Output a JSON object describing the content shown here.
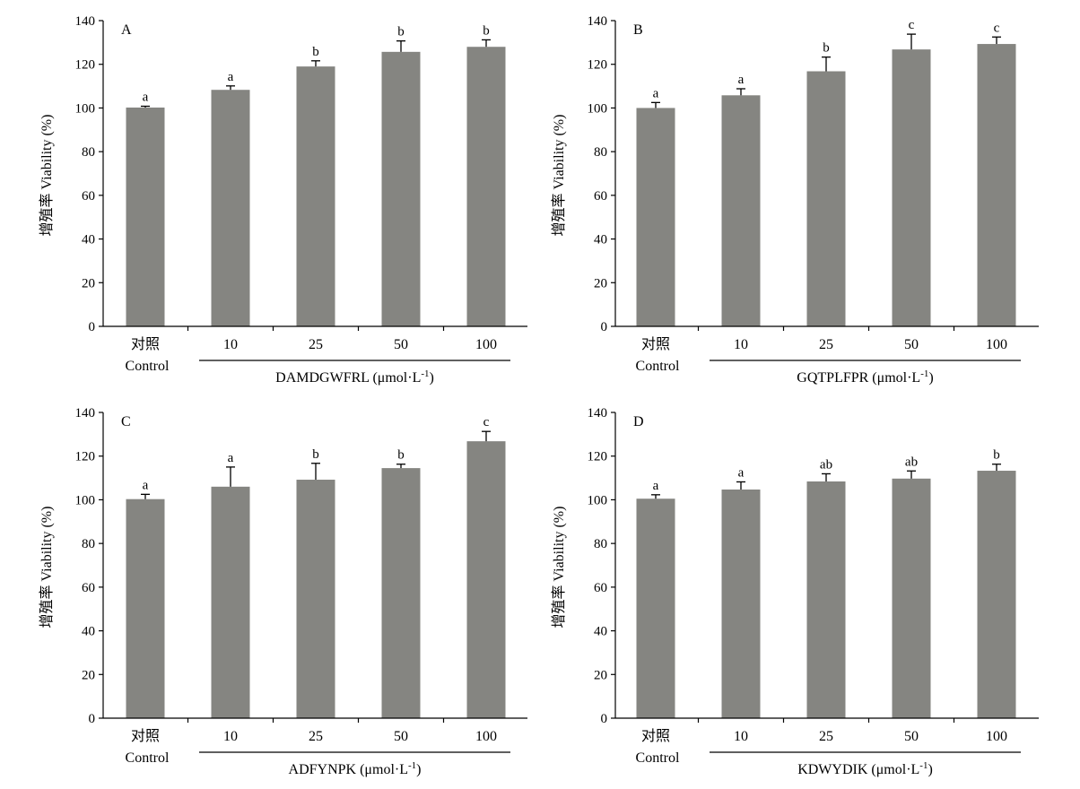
{
  "chart_data": [
    {
      "type": "bar",
      "panel_label": "A",
      "categories": [
        "对照",
        "10",
        "25",
        "50",
        "100"
      ],
      "control_sublabel": "Control",
      "group_label": "DAMDGWFRL (μmol·L",
      "group_unit_exp": "-1",
      "group_label_end": ")",
      "ylabel": "增殖率 Viability (%)",
      "ylim": [
        0,
        140
      ],
      "yticks": [
        0,
        20,
        40,
        60,
        80,
        100,
        120,
        140
      ],
      "values": [
        100.2,
        108.3,
        119.0,
        125.7,
        128.0
      ],
      "errors": [
        0.6,
        1.8,
        2.6,
        5.0,
        3.2
      ],
      "letters": [
        "a",
        "a",
        "b",
        "b",
        "b"
      ],
      "bar_color": "#858581"
    },
    {
      "type": "bar",
      "panel_label": "B",
      "categories": [
        "对照",
        "10",
        "25",
        "50",
        "100"
      ],
      "control_sublabel": "Control",
      "group_label": "GQTPLFPR (μmol·L",
      "group_unit_exp": "-1",
      "group_label_end": ")",
      "ylabel": "增殖率 Viability (%)",
      "ylim": [
        0,
        140
      ],
      "yticks": [
        0,
        20,
        40,
        60,
        80,
        100,
        120,
        140
      ],
      "values": [
        100.0,
        105.8,
        116.8,
        126.8,
        129.3
      ],
      "errors": [
        2.5,
        3.0,
        6.5,
        7.0,
        3.2
      ],
      "letters": [
        "a",
        "a",
        "b",
        "c",
        "c"
      ],
      "bar_color": "#858581"
    },
    {
      "type": "bar",
      "panel_label": "C",
      "categories": [
        "对照",
        "10",
        "25",
        "50",
        "100"
      ],
      "control_sublabel": "Control",
      "group_label": "ADFYNPK (μmol·L",
      "group_unit_exp": "-1",
      "group_label_end": ")",
      "ylabel": "增殖率 Viability (%)",
      "ylim": [
        0,
        140
      ],
      "yticks": [
        0,
        20,
        40,
        60,
        80,
        100,
        120,
        140
      ],
      "values": [
        100.3,
        106.0,
        109.2,
        114.5,
        126.8
      ],
      "errors": [
        2.2,
        9.0,
        7.5,
        1.8,
        4.5
      ],
      "letters": [
        "a",
        "a",
        "b",
        "b",
        "c"
      ],
      "bar_color": "#858581"
    },
    {
      "type": "bar",
      "panel_label": "D",
      "categories": [
        "对照",
        "10",
        "25",
        "50",
        "100"
      ],
      "control_sublabel": "Control",
      "group_label": "KDWYDIK (μmol·L",
      "group_unit_exp": "-1",
      "group_label_end": ")",
      "ylabel": "增殖率 Viability (%)",
      "ylim": [
        0,
        140
      ],
      "yticks": [
        0,
        20,
        40,
        60,
        80,
        100,
        120,
        140
      ],
      "values": [
        100.5,
        104.7,
        108.4,
        109.7,
        113.3
      ],
      "errors": [
        1.8,
        3.5,
        3.5,
        3.5,
        3.0
      ],
      "letters": [
        "a",
        "a",
        "ab",
        "ab",
        "b"
      ],
      "bar_color": "#858581"
    }
  ]
}
